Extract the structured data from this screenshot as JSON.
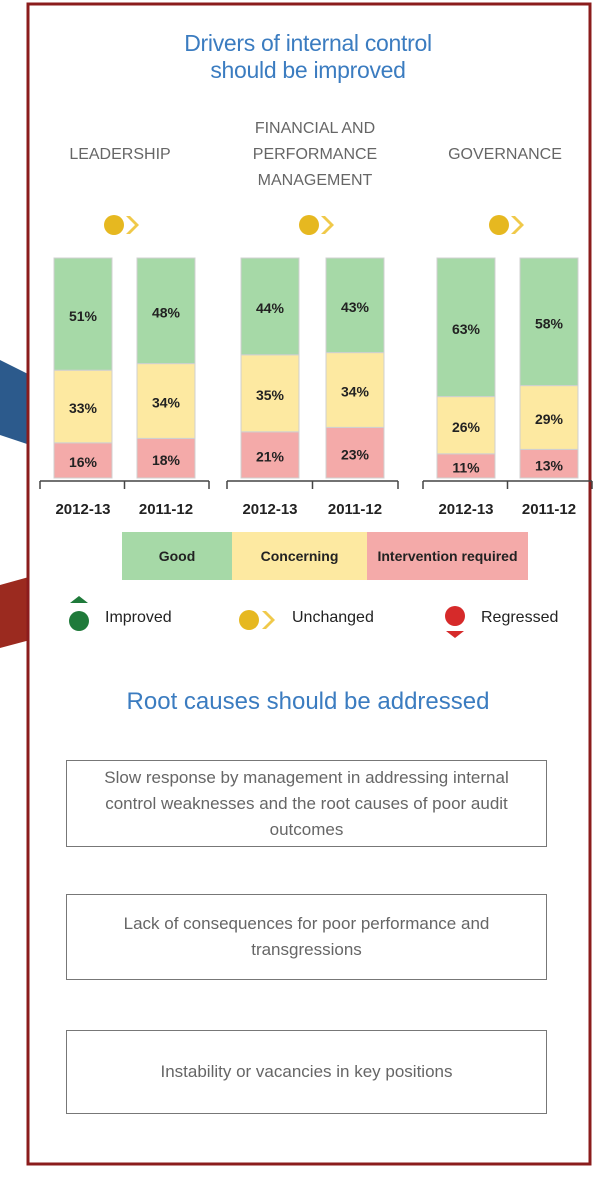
{
  "title": "Drivers of internal control\nshould be improved",
  "chart_data": [
    {
      "type": "bar",
      "stacked": true,
      "title": "LEADERSHIP",
      "categories": [
        "2012-13",
        "2011-12"
      ],
      "ylim": [
        0,
        100
      ],
      "series": [
        {
          "name": "Good",
          "color": "#a6d9a7",
          "values": [
            51,
            48
          ],
          "value_labels": [
            "51%",
            "48%"
          ]
        },
        {
          "name": "Concerning",
          "color": "#fde9a1",
          "values": [
            33,
            34
          ],
          "value_labels": [
            "33%",
            "34%"
          ]
        },
        {
          "name": "Intervention required",
          "color": "#f4aaa9",
          "values": [
            16,
            18
          ],
          "value_labels": [
            "16%",
            "18%"
          ]
        }
      ]
    },
    {
      "type": "bar",
      "stacked": true,
      "title": "FINANCIAL AND\nPERFORMANCE\nMANAGEMENT",
      "categories": [
        "2012-13",
        "2011-12"
      ],
      "ylim": [
        0,
        100
      ],
      "series": [
        {
          "color": "#a6d9a7",
          "values": [
            44,
            43
          ],
          "value_labels": [
            "44%",
            "43%"
          ]
        },
        {
          "color": "#fde9a1",
          "values": [
            35,
            34
          ],
          "value_labels": [
            "35%",
            "34%"
          ]
        },
        {
          "color": "#f4aaa9",
          "values": [
            21,
            23
          ],
          "value_labels": [
            "21%",
            "23%"
          ]
        }
      ]
    },
    {
      "type": "bar",
      "stacked": true,
      "title": "GOVERNANCE",
      "categories": [
        "2012-13",
        "2011-12"
      ],
      "ylim": [
        0,
        100
      ],
      "series": [
        {
          "color": "#a6d9a7",
          "values": [
            63,
            58
          ],
          "value_labels": [
            "63%",
            "58%"
          ]
        },
        {
          "color": "#fde9a1",
          "values": [
            26,
            29
          ],
          "value_labels": [
            "26%",
            "29%"
          ]
        },
        {
          "color": "#f4aaa9",
          "values": [
            11,
            13
          ],
          "value_labels": [
            "11%",
            "13%"
          ]
        }
      ]
    }
  ],
  "status_legend": [
    "Improved",
    "Unchanged",
    "Regressed"
  ],
  "root_causes": {
    "title": "Root causes should be addressed",
    "items": [
      "Slow response by management in addressing internal control weaknesses and the root causes of poor audit outcomes",
      "Lack of consequences for poor performance and transgressions",
      "Instability or vacancies in key positions"
    ]
  }
}
